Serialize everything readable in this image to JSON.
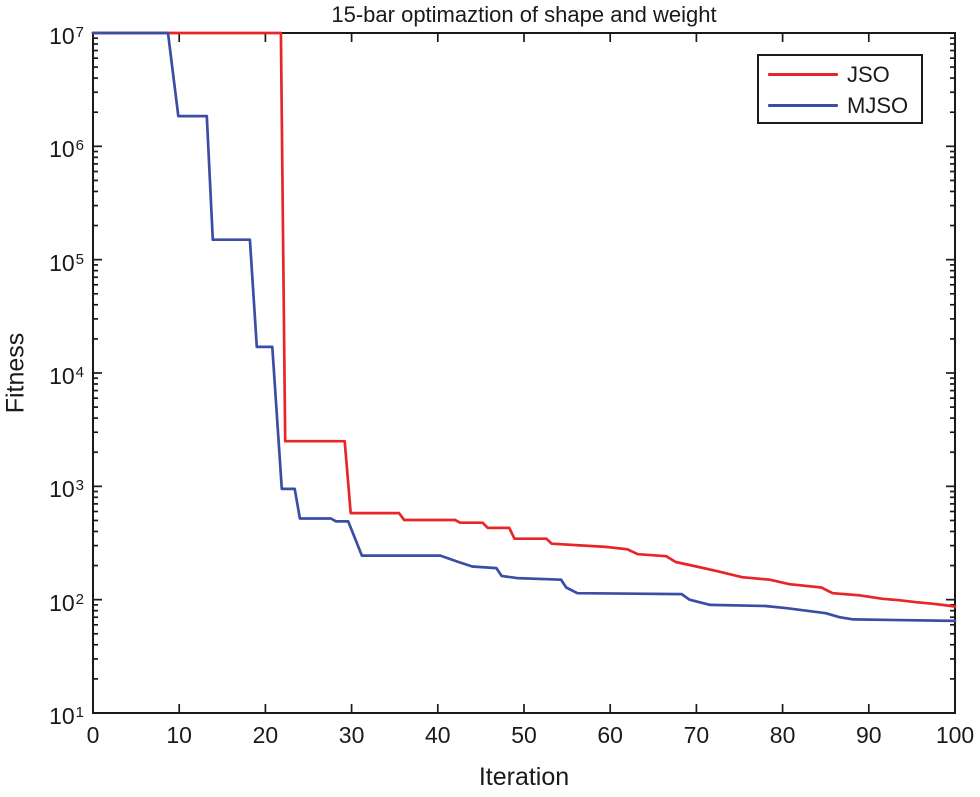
{
  "chart_data": {
    "type": "line",
    "title": "15-bar optimaztion of shape and weight",
    "xlabel": "Iteration",
    "ylabel": "Fitness",
    "grid": "off",
    "background": "#ffffff",
    "axis_color": "#1a1a1a",
    "x_axis": {
      "min": 0,
      "max": 100,
      "ticks": [
        0,
        10,
        20,
        30,
        40,
        50,
        60,
        70,
        80,
        90,
        100
      ]
    },
    "y_axis": {
      "scale": "log",
      "base": 10,
      "min": 10,
      "max": 10000000,
      "tick_exponents": [
        1,
        2,
        3,
        4,
        5,
        6,
        7
      ],
      "minor_ticks": true
    },
    "legend": {
      "position": "top-right",
      "border": true,
      "entries": [
        {
          "label": "JSO",
          "color": "#e8262a"
        },
        {
          "label": "MJSO",
          "color": "#3c4da4"
        }
      ]
    },
    "series": [
      {
        "name": "JSO",
        "color": "#e8262a",
        "points": [
          [
            0,
            10000000
          ],
          [
            21.8,
            10000000
          ],
          [
            22.3,
            2500
          ],
          [
            29.2,
            2500
          ],
          [
            29.9,
            580
          ],
          [
            35.5,
            580
          ],
          [
            36.1,
            505
          ],
          [
            42.0,
            505
          ],
          [
            42.6,
            478
          ],
          [
            45.2,
            478
          ],
          [
            45.8,
            430
          ],
          [
            48.3,
            430
          ],
          [
            48.9,
            345
          ],
          [
            52.6,
            345
          ],
          [
            53.2,
            312
          ],
          [
            57.0,
            300
          ],
          [
            59.5,
            292
          ],
          [
            62.0,
            278
          ],
          [
            63.2,
            252
          ],
          [
            66.5,
            242
          ],
          [
            67.6,
            215
          ],
          [
            70.0,
            196
          ],
          [
            72.5,
            178
          ],
          [
            75.3,
            158
          ],
          [
            78.5,
            150
          ],
          [
            80.8,
            137
          ],
          [
            84.5,
            128
          ],
          [
            85.8,
            114
          ],
          [
            89.0,
            109
          ],
          [
            91.5,
            102
          ],
          [
            93.5,
            99
          ],
          [
            95.5,
            95
          ],
          [
            97.5,
            92
          ],
          [
            99.0,
            89
          ],
          [
            100,
            87
          ]
        ]
      },
      {
        "name": "MJSO",
        "color": "#3c4da4",
        "points": [
          [
            0,
            10000000
          ],
          [
            8.7,
            10000000
          ],
          [
            9.9,
            1850000
          ],
          [
            13.2,
            1850000
          ],
          [
            13.9,
            150000
          ],
          [
            18.2,
            150000
          ],
          [
            19.0,
            17000
          ],
          [
            20.8,
            17000
          ],
          [
            21.9,
            950
          ],
          [
            23.4,
            950
          ],
          [
            24.0,
            520
          ],
          [
            27.6,
            520
          ],
          [
            28.2,
            490
          ],
          [
            29.6,
            490
          ],
          [
            31.2,
            245
          ],
          [
            40.3,
            245
          ],
          [
            42.4,
            215
          ],
          [
            44.0,
            196
          ],
          [
            46.8,
            190
          ],
          [
            47.4,
            162
          ],
          [
            49.2,
            155
          ],
          [
            54.3,
            150
          ],
          [
            54.9,
            128
          ],
          [
            56.2,
            114
          ],
          [
            68.3,
            112
          ],
          [
            69.2,
            100
          ],
          [
            71.6,
            90
          ],
          [
            78.0,
            88
          ],
          [
            80.5,
            84
          ],
          [
            85.0,
            76
          ],
          [
            86.6,
            70
          ],
          [
            88.2,
            67
          ],
          [
            100,
            65
          ]
        ]
      }
    ]
  }
}
